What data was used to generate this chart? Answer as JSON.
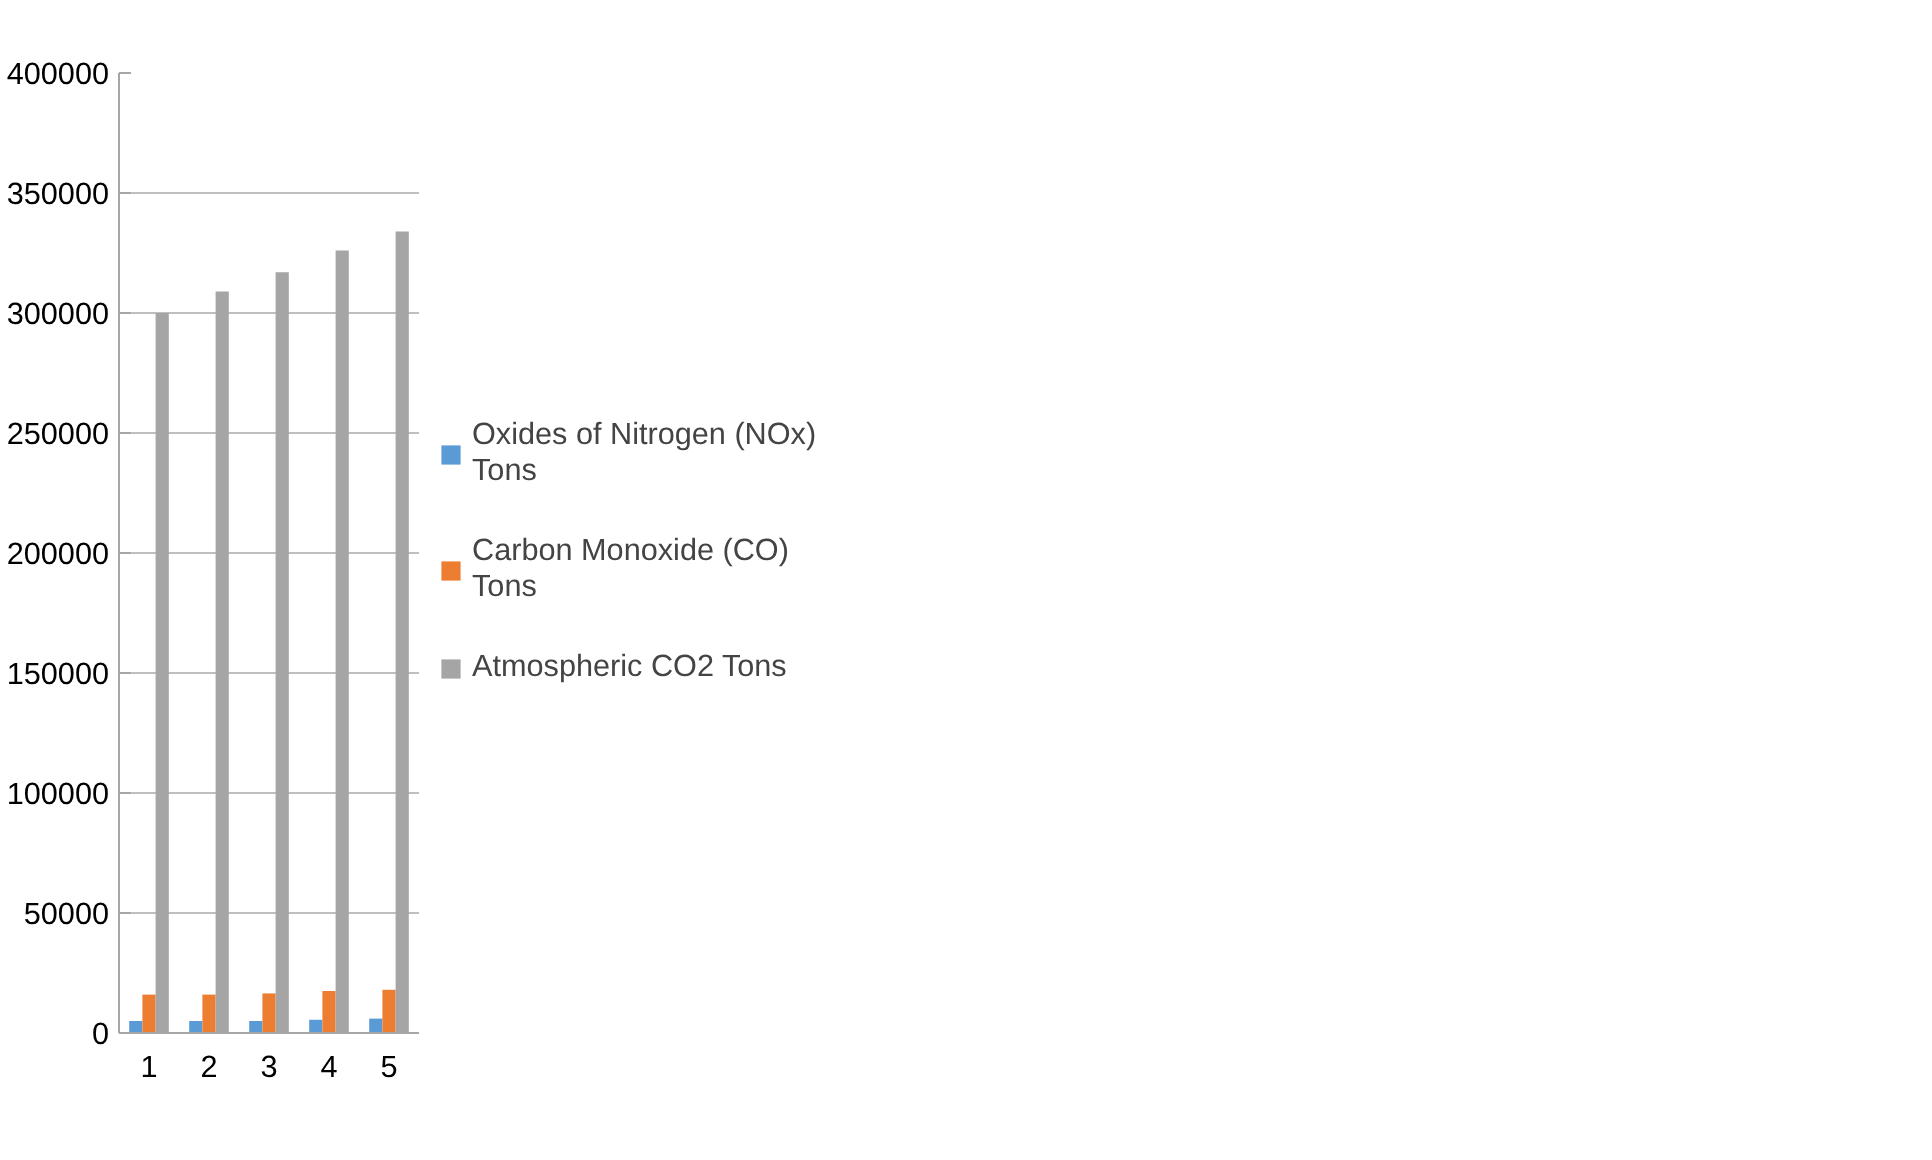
{
  "chart_data": {
    "type": "bar",
    "categories": [
      "1",
      "2",
      "3",
      "4",
      "5"
    ],
    "series": [
      {
        "name": "Oxides of Nitrogen (NOx) Tons",
        "color": "#5b9bd5",
        "values": [
          5000,
          5000,
          5000,
          5500,
          6000
        ]
      },
      {
        "name": "Carbon Monoxide (CO) Tons",
        "color": "#ed7d31",
        "values": [
          16000,
          16000,
          16500,
          17500,
          18000
        ]
      },
      {
        "name": "Atmospheric CO2 Tons",
        "color": "#a5a5a5",
        "values": [
          300000,
          309000,
          317000,
          326000,
          334000
        ]
      }
    ],
    "ylim": [
      0,
      400000
    ],
    "yticks": [
      0,
      50000,
      100000,
      150000,
      200000,
      250000,
      300000,
      350000,
      400000
    ],
    "grid": "y",
    "legend": "right"
  }
}
